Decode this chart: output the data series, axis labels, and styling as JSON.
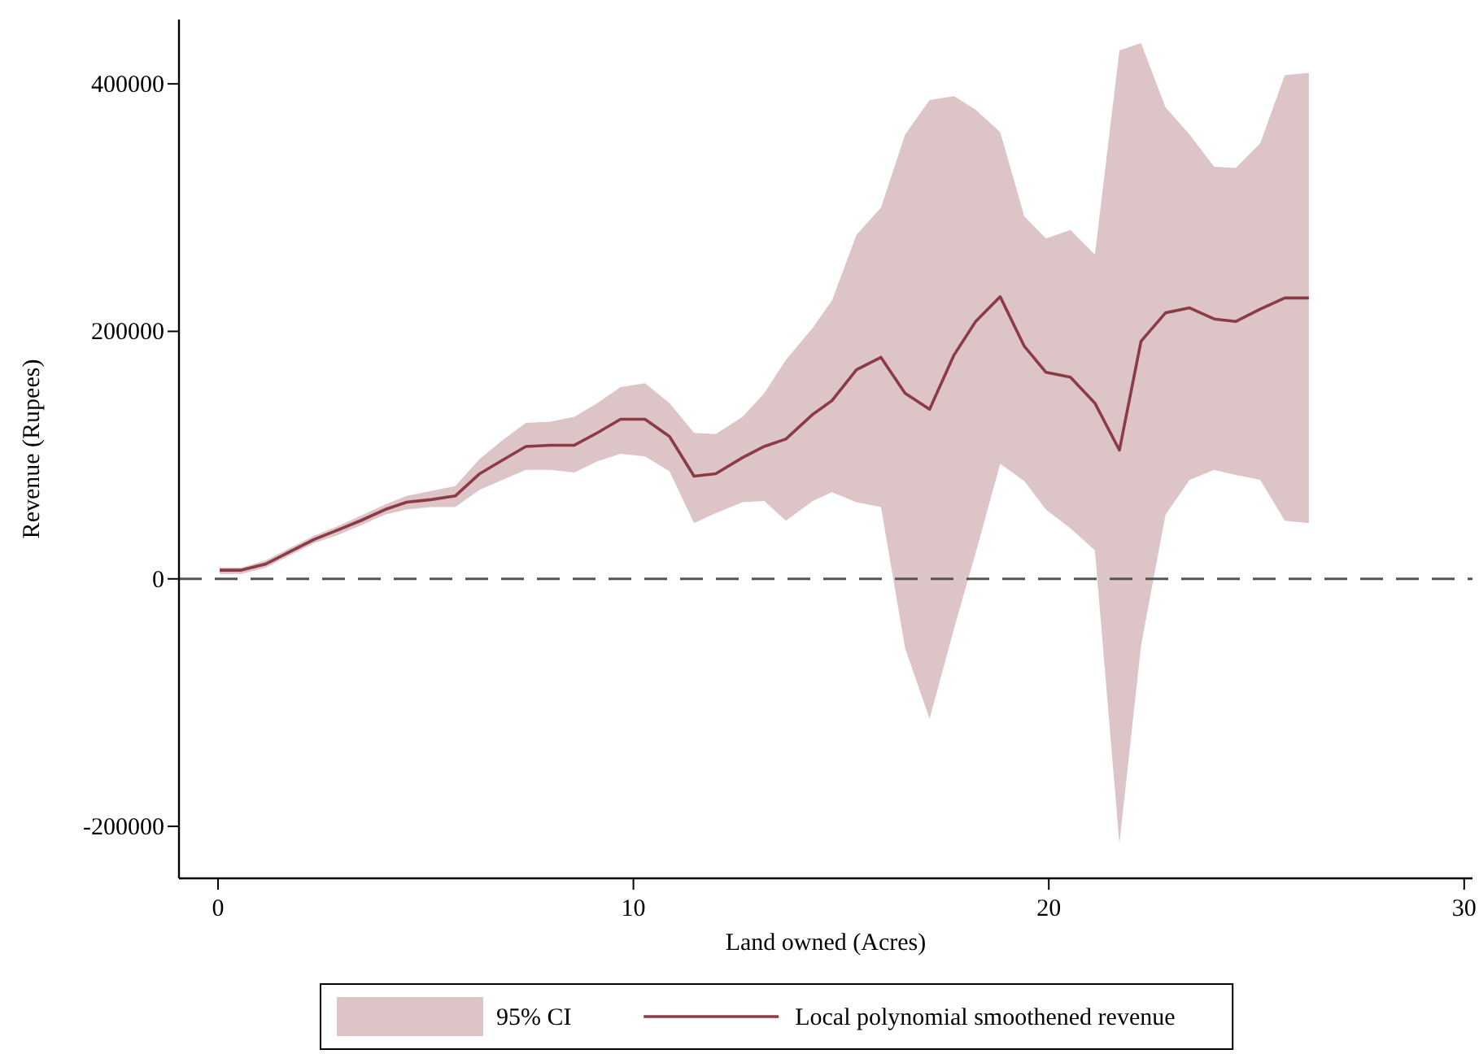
{
  "chart_data": {
    "type": "line",
    "xlabel": "Land owned (Acres)",
    "ylabel": "Revenue (Rupees)",
    "xlim": [
      -0.94,
      30.2
    ],
    "xticks": [
      0,
      10,
      20,
      30
    ],
    "ylim": [
      -242000,
      452000
    ],
    "yticks": [
      -200000,
      0,
      200000,
      400000
    ],
    "grid": false,
    "legend": "bottom",
    "line_style": "solid",
    "marker": "none",
    "annotations": [
      "95% CI"
    ],
    "ref_lines": [
      {
        "axis": "y",
        "value": 0,
        "color": "#555555",
        "line_style": "dashed"
      }
    ],
    "series": [
      {
        "name": "Local polynomial smoothened revenue",
        "color": "#8c3b46",
        "x": [
          0.04,
          0.56,
          1.15,
          1.73,
          2.32,
          2.85,
          3.43,
          4.02,
          4.54,
          5.12,
          5.71,
          6.3,
          6.85,
          7.41,
          8.0,
          8.58,
          9.13,
          9.69,
          10.28,
          10.87,
          11.46,
          11.98,
          12.63,
          13.15,
          13.67,
          14.32,
          14.78,
          15.37,
          15.96,
          16.54,
          17.13,
          17.72,
          18.24,
          18.83,
          19.41,
          19.93,
          20.52,
          21.11,
          21.7,
          22.22,
          22.81,
          23.39,
          23.98,
          24.5,
          25.09,
          25.68,
          26.26
        ],
        "values": [
          7000,
          7000,
          12000,
          22000,
          32000,
          39000,
          47000,
          56000,
          62000,
          64000,
          67000,
          85000,
          96000,
          107000,
          108000,
          108000,
          118000,
          129000,
          129000,
          115000,
          83000,
          85000,
          98000,
          107000,
          113000,
          133000,
          144000,
          169000,
          179000,
          150000,
          137000,
          181000,
          208000,
          228000,
          188000,
          167000,
          163000,
          142000,
          104000,
          192000,
          215000,
          219000,
          210000,
          208000,
          218000,
          227000,
          227000
        ],
        "lower": [
          4000,
          4000,
          9000,
          19000,
          29000,
          35000,
          43000,
          52000,
          56000,
          58000,
          58000,
          72000,
          80000,
          88000,
          88000,
          86000,
          95000,
          101000,
          99000,
          87000,
          45000,
          53000,
          62000,
          63000,
          47000,
          63000,
          70000,
          62000,
          58000,
          -56000,
          -113000,
          -40000,
          21000,
          93000,
          79000,
          56000,
          41000,
          23000,
          -214000,
          -54000,
          52000,
          80000,
          88000,
          84000,
          80000,
          47000,
          45000
        ],
        "upper": [
          9000,
          9000,
          15000,
          25000,
          35000,
          42000,
          51000,
          60000,
          67000,
          71000,
          75000,
          97000,
          112000,
          126000,
          127000,
          131000,
          142000,
          155000,
          158000,
          142000,
          118000,
          117000,
          131000,
          150000,
          177000,
          203000,
          225000,
          278000,
          300000,
          359000,
          387000,
          390000,
          379000,
          361000,
          293000,
          275000,
          282000,
          262000,
          427000,
          433000,
          381000,
          359000,
          333000,
          332000,
          352000,
          407000,
          409000
        ]
      }
    ]
  }
}
